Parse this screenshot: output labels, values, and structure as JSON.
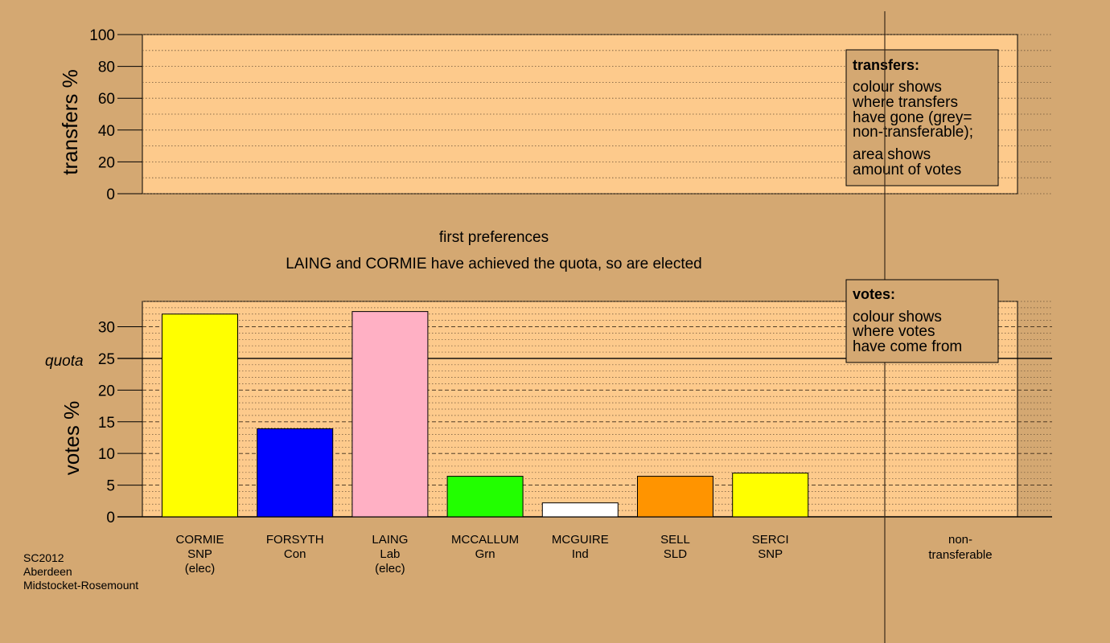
{
  "chart_data": [
    {
      "type": "bar",
      "ylabel": "transfers %",
      "ylim": [
        0,
        100
      ],
      "yticks": [
        0,
        20,
        40,
        60,
        80,
        100
      ],
      "grid": "dotted",
      "legend": {
        "placement": "top-right",
        "title": "transfers:",
        "lines": [
          "colour shows",
          "where transfers",
          "have gone (grey=",
          "non-transferable);"
        ],
        "lines2": [
          "area shows",
          "amount of votes"
        ]
      },
      "series": []
    },
    {
      "type": "bar",
      "title": "first preferences",
      "subtitle": "LAING and CORMIE have achieved the quota, so are elected",
      "ylabel": "votes %",
      "ylim": [
        0,
        34
      ],
      "yticks": [
        0,
        5,
        10,
        15,
        20,
        25,
        30
      ],
      "quota": {
        "value": 25,
        "label": "quota"
      },
      "grid": "dashed",
      "legend": {
        "placement": "top-right",
        "title": "votes:",
        "lines": [
          "colour shows",
          "where votes",
          "have come from"
        ]
      },
      "categories": [
        {
          "name": "CORMIE",
          "party": "SNP",
          "note": "(elec)",
          "value": 32.0,
          "color": "#ffff00"
        },
        {
          "name": "FORSYTH",
          "party": "Con",
          "note": "",
          "value": 13.9,
          "color": "#0000ff"
        },
        {
          "name": "LAING",
          "party": "Lab",
          "note": "(elec)",
          "value": 32.4,
          "color": "#ffb0c4"
        },
        {
          "name": "MCCALLUM",
          "party": "Grn",
          "note": "",
          "value": 6.4,
          "color": "#22ff00"
        },
        {
          "name": "MCGUIRE",
          "party": "Ind",
          "note": "",
          "value": 2.2,
          "color": "#ffffff"
        },
        {
          "name": "SELL",
          "party": "SLD",
          "note": "",
          "value": 6.4,
          "color": "#ff9400"
        },
        {
          "name": "SERCI",
          "party": "SNP",
          "note": "",
          "value": 6.9,
          "color": "#ffff00"
        }
      ],
      "nontransferable": [
        "non-",
        "transferable"
      ]
    }
  ],
  "footer": [
    "SC2012",
    "Aberdeen",
    "Midstocket-Rosemount"
  ],
  "colors": {
    "background": "#d4a872",
    "panel": "#fdca8c"
  }
}
